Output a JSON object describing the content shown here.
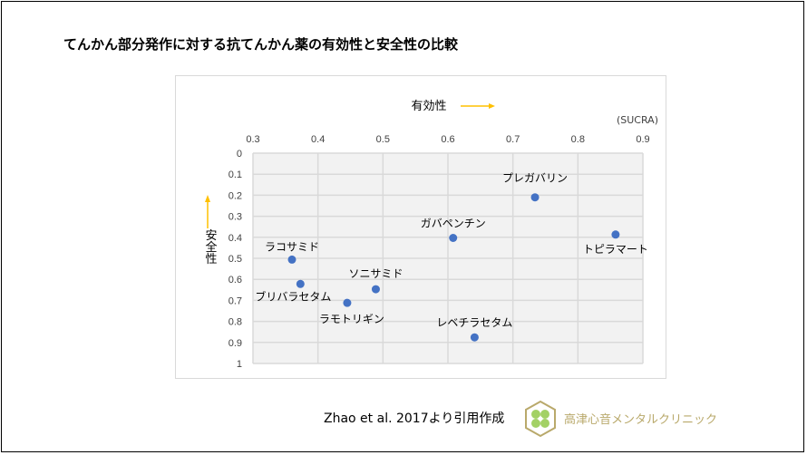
{
  "title": "てんかん部分発作に対する抗てんかん薬の有効性と安全性の比較",
  "source": "Zhao et al. 2017より引用作成",
  "clinic_name": "高津心音メンタルクリニック",
  "colors": {
    "point": "#4472c4",
    "arrow": "#ffc000",
    "plot_bg": "#f2f2f2",
    "grid": "#d9d9d9",
    "logo": "#b9a96b",
    "logo_leaf": "#8cc63f"
  },
  "chart_data": {
    "type": "scatter",
    "title": "",
    "xlabel": "有効性",
    "xunit": "(SUCRA)",
    "ylabel": "安全性",
    "xlim": [
      0.3,
      0.9
    ],
    "ylim": [
      0,
      1
    ],
    "y_inverted": true,
    "x_axis_position": "top",
    "grid": true,
    "xticks": [
      "0.3",
      "0.4",
      "0.5",
      "0.6",
      "0.7",
      "0.8",
      "0.9"
    ],
    "yticks": [
      "0",
      "0.1",
      "0.2",
      "0.3",
      "0.4",
      "0.5",
      "0.6",
      "0.7",
      "0.8",
      "0.9",
      "1"
    ],
    "points": [
      {
        "label": "プレガバリン",
        "x": 0.734,
        "y": 0.21
      },
      {
        "label": "トピラマート",
        "x": 0.858,
        "y": 0.387
      },
      {
        "label": "ガバペンチン",
        "x": 0.608,
        "y": 0.403
      },
      {
        "label": "ラコサミド",
        "x": 0.36,
        "y": 0.506
      },
      {
        "label": "ブリバラセタム",
        "x": 0.373,
        "y": 0.622
      },
      {
        "label": "ソニサミド",
        "x": 0.489,
        "y": 0.647
      },
      {
        "label": "ラモトリギン",
        "x": 0.445,
        "y": 0.712
      },
      {
        "label": "レベチラセタム",
        "x": 0.641,
        "y": 0.876
      }
    ]
  }
}
